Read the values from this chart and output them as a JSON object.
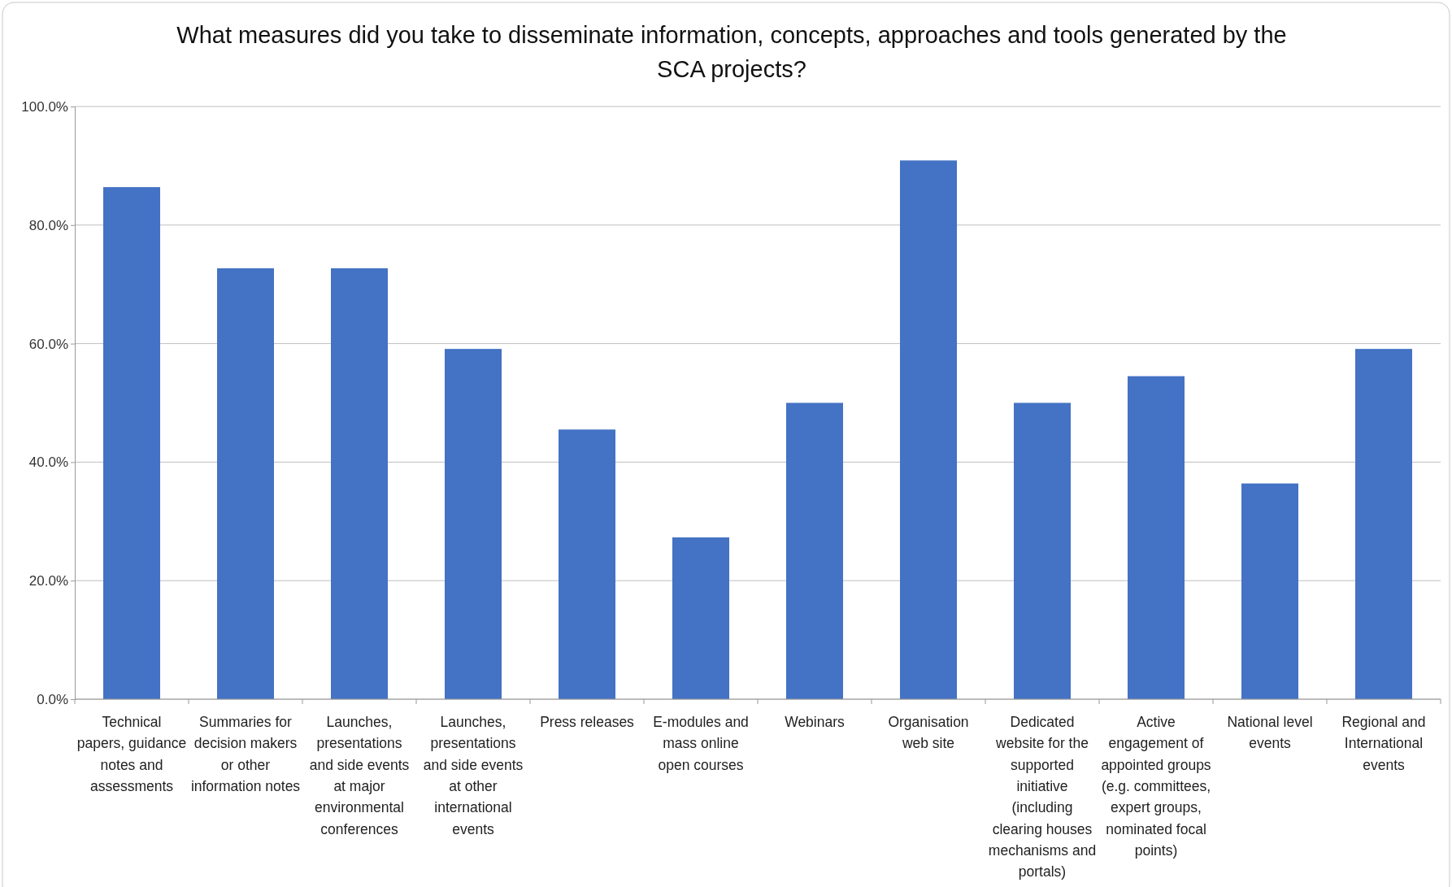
{
  "chart_data": {
    "type": "bar",
    "title": "What measures did you take to disseminate information, concepts, approaches and tools generated by the SCA projects?",
    "categories": [
      "Technical papers, guidance notes and assessments",
      "Summaries for decision makers or other information notes",
      "Launches, presentations and side events at major environmental conferences",
      "Launches, presentations and side events at other international events",
      "Press releases",
      "E-modules and mass online open courses",
      "Webinars",
      "Organisation web site",
      "Dedicated website for the supported initiative (including clearing houses mechanisms and portals)",
      "Active engagement of appointed groups (e.g. committees, expert groups, nominated focal points)",
      "National level events",
      "Regional and International events"
    ],
    "values": [
      86.4,
      72.7,
      72.7,
      59.1,
      45.5,
      27.3,
      50.0,
      90.9,
      50.0,
      54.5,
      36.4,
      59.1
    ],
    "color": "#4472c4",
    "ylim": [
      0,
      100
    ],
    "yticks": [
      {
        "value": 0,
        "label": "0.0%"
      },
      {
        "value": 20,
        "label": "20.0%"
      },
      {
        "value": 40,
        "label": "40.0%"
      },
      {
        "value": 60,
        "label": "60.0%"
      },
      {
        "value": 80,
        "label": "80.0%"
      },
      {
        "value": 100,
        "label": "100.0%"
      }
    ],
    "grid": "y"
  }
}
